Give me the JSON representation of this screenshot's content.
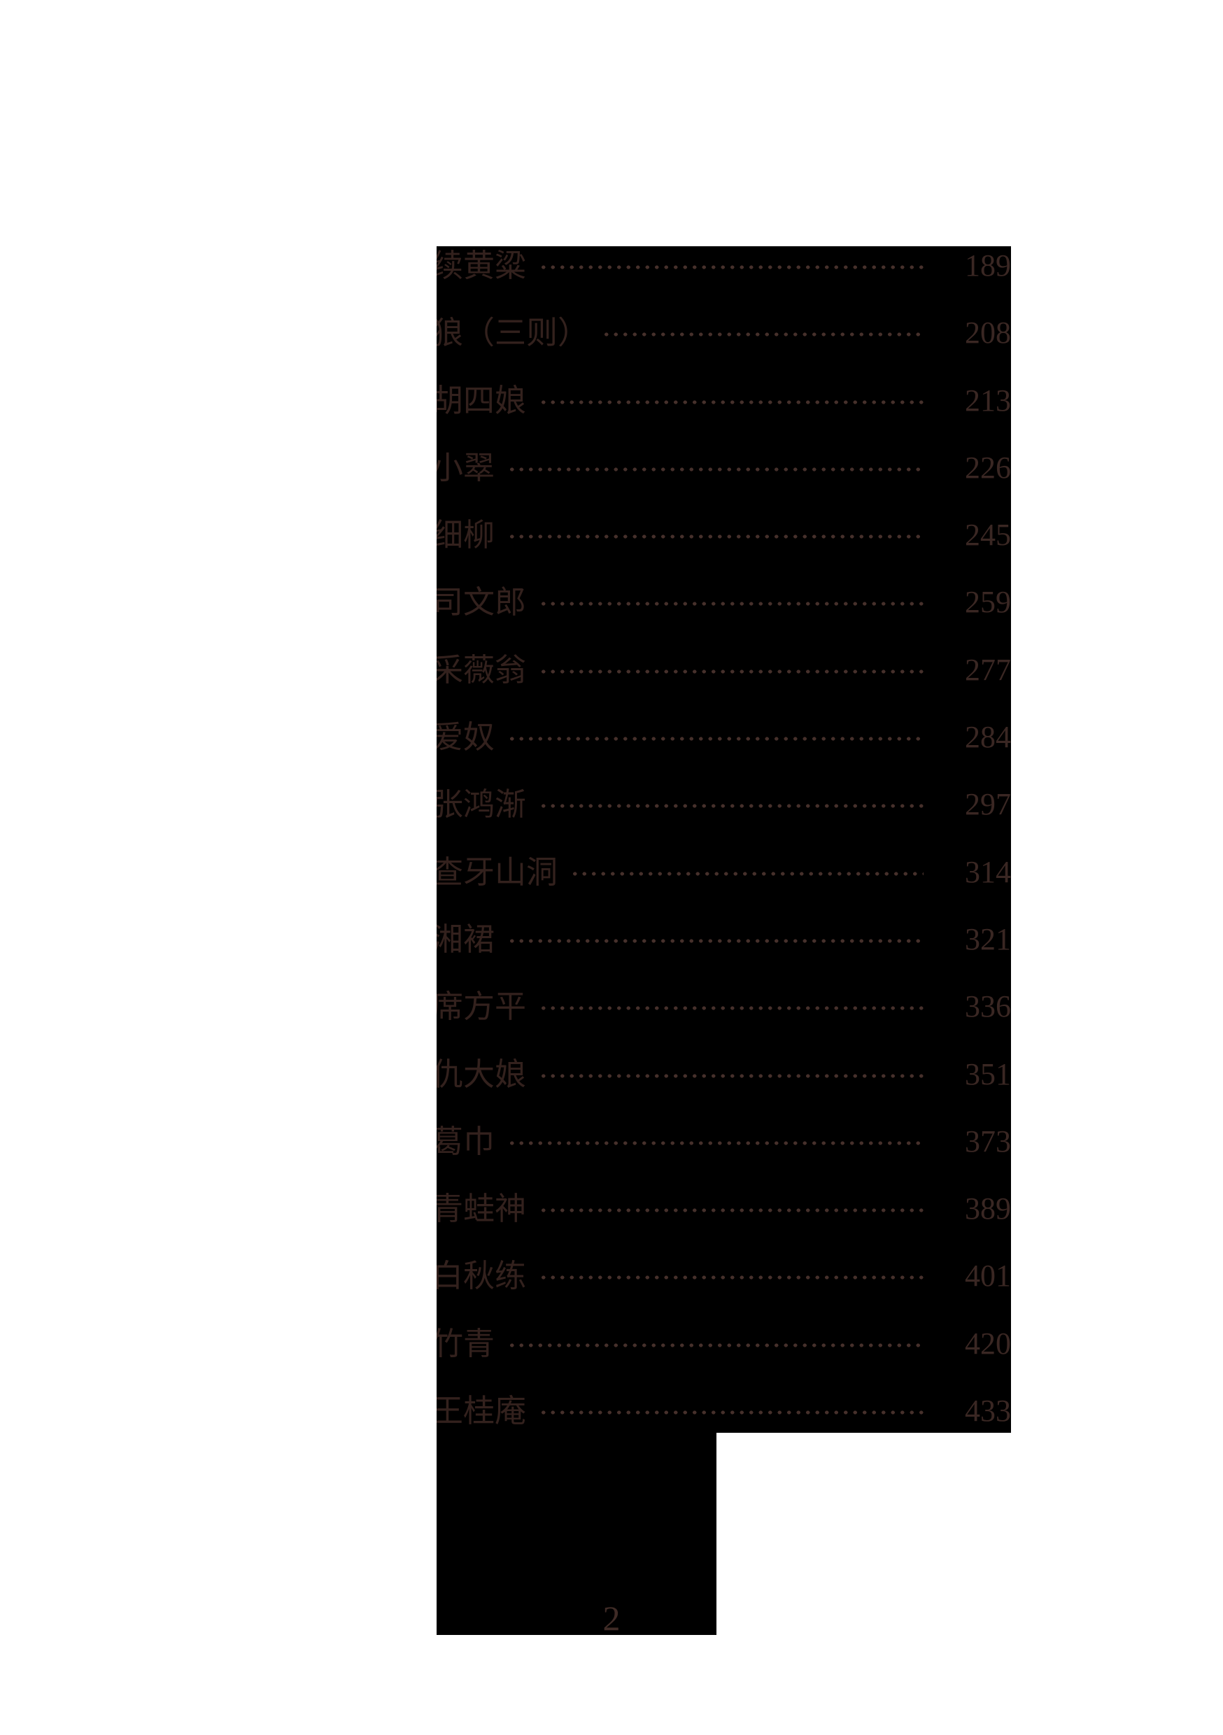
{
  "colors": {
    "page_bg": "#ffffff",
    "panel_bg": "#000000",
    "title": "#33211d",
    "dots": "#46302b",
    "number": "#3a2723",
    "footer": "#3f2b26"
  },
  "toc": {
    "entries": [
      {
        "title": "续黄粱",
        "page": "189"
      },
      {
        "title": "狼（三则）",
        "page": "208"
      },
      {
        "title": "胡四娘",
        "page": "213"
      },
      {
        "title": "小翠",
        "page": "226"
      },
      {
        "title": "细柳",
        "page": "245"
      },
      {
        "title": "司文郎",
        "page": "259"
      },
      {
        "title": "采薇翁",
        "page": "277"
      },
      {
        "title": "爱奴",
        "page": "284"
      },
      {
        "title": "张鸿渐",
        "page": "297"
      },
      {
        "title": "查牙山洞",
        "page": "314"
      },
      {
        "title": "湘裙",
        "page": "321"
      },
      {
        "title": "席方平",
        "page": "336"
      },
      {
        "title": "仇大娘",
        "page": "351"
      },
      {
        "title": "葛巾",
        "page": "373"
      },
      {
        "title": "青蛙神",
        "page": "389"
      },
      {
        "title": "白秋练",
        "page": "401"
      },
      {
        "title": "竹青",
        "page": "420"
      },
      {
        "title": "王桂庵",
        "page": "433"
      }
    ]
  },
  "footer": {
    "page_number": "2"
  }
}
